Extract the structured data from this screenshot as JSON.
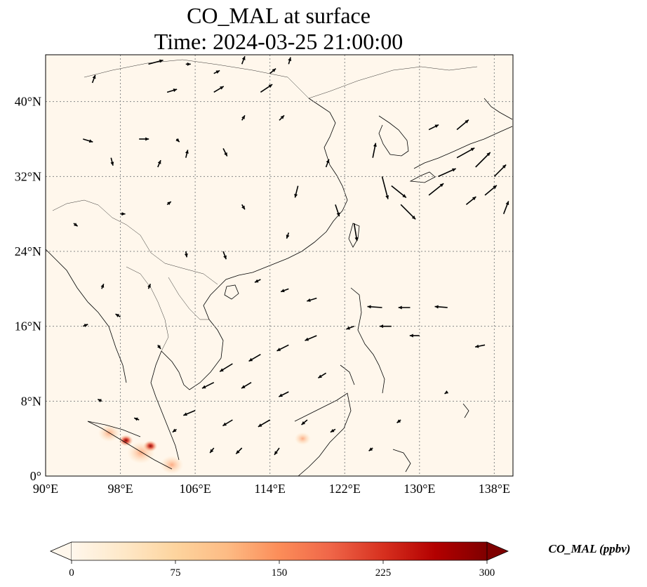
{
  "title": {
    "line1": "CO_MAL at surface",
    "line2": "Time: 2024-03-25 21:00:00"
  },
  "map": {
    "lon_range": [
      90,
      140
    ],
    "lat_range": [
      0,
      45
    ],
    "lon_ticks": [
      {
        "value": 90,
        "label": "90°E"
      },
      {
        "value": 98,
        "label": "98°E"
      },
      {
        "value": 106,
        "label": "106°E"
      },
      {
        "value": 114,
        "label": "114°E"
      },
      {
        "value": 122,
        "label": "122°E"
      },
      {
        "value": 130,
        "label": "130°E"
      },
      {
        "value": 138,
        "label": "138°E"
      }
    ],
    "lat_ticks": [
      {
        "value": 0,
        "label": "0°"
      },
      {
        "value": 8,
        "label": "8°N"
      },
      {
        "value": 16,
        "label": "16°N"
      },
      {
        "value": 24,
        "label": "24°N"
      },
      {
        "value": 32,
        "label": "32°N"
      },
      {
        "value": 40,
        "label": "40°N"
      }
    ],
    "gridlines": true,
    "background_color": "#fff7ec",
    "hotspots": [
      {
        "lon": 98.6,
        "lat": 3.8,
        "value": 290
      },
      {
        "lon": 101.2,
        "lat": 3.2,
        "value": 280
      },
      {
        "lon": 100.2,
        "lat": 2.5,
        "value": 140
      },
      {
        "lon": 96.8,
        "lat": 4.6,
        "value": 90
      },
      {
        "lon": 103.5,
        "lat": 1.2,
        "value": 100
      },
      {
        "lon": 117.5,
        "lat": 4.0,
        "value": 40
      }
    ]
  },
  "wind_vectors": [
    {
      "lon": 101,
      "lat": 44,
      "u": 1.5,
      "v": 0.4
    },
    {
      "lon": 105,
      "lat": 44,
      "u": 0.5,
      "v": 0
    },
    {
      "lon": 108,
      "lat": 43,
      "u": 0.6,
      "v": 0.3
    },
    {
      "lon": 111,
      "lat": 44,
      "u": 0.3,
      "v": 0.8
    },
    {
      "lon": 114,
      "lat": 43,
      "u": 0.6,
      "v": 0.5
    },
    {
      "lon": 116,
      "lat": 44,
      "u": 0.2,
      "v": 0.7
    },
    {
      "lon": 113,
      "lat": 41,
      "u": 1.2,
      "v": 0.8
    },
    {
      "lon": 108,
      "lat": 41,
      "u": 1.0,
      "v": 0.6
    },
    {
      "lon": 103,
      "lat": 41,
      "u": 1.0,
      "v": 0.3
    },
    {
      "lon": 95,
      "lat": 42,
      "u": 0.3,
      "v": 0.8
    },
    {
      "lon": 94,
      "lat": 36,
      "u": 1.0,
      "v": -0.3
    },
    {
      "lon": 97,
      "lat": 34,
      "u": 0.2,
      "v": -0.8
    },
    {
      "lon": 100,
      "lat": 36,
      "u": 1.0,
      "v": 0
    },
    {
      "lon": 102,
      "lat": 33,
      "u": 0.3,
      "v": 0.7
    },
    {
      "lon": 104,
      "lat": 36,
      "u": 0.3,
      "v": -0.3
    },
    {
      "lon": 105,
      "lat": 34,
      "u": 0.2,
      "v": 0.8
    },
    {
      "lon": 109,
      "lat": 35,
      "u": 0.4,
      "v": -0.8
    },
    {
      "lon": 111,
      "lat": 38,
      "u": 0.3,
      "v": 0.5
    },
    {
      "lon": 115,
      "lat": 38,
      "u": 0.5,
      "v": 0.5
    },
    {
      "lon": 117,
      "lat": 31,
      "u": -0.3,
      "v": -1.2
    },
    {
      "lon": 120,
      "lat": 33,
      "u": 0.3,
      "v": 0.8
    },
    {
      "lon": 121,
      "lat": 29,
      "u": 0.4,
      "v": -1.2
    },
    {
      "lon": 123,
      "lat": 27,
      "u": 0.3,
      "v": -1.8
    },
    {
      "lon": 126,
      "lat": 32,
      "u": 0.6,
      "v": -2.3
    },
    {
      "lon": 128,
      "lat": 29,
      "u": 1.5,
      "v": -1.5
    },
    {
      "lon": 127,
      "lat": 31,
      "u": 1.5,
      "v": -1.2
    },
    {
      "lon": 125,
      "lat": 34,
      "u": 0.3,
      "v": 1.5
    },
    {
      "lon": 131,
      "lat": 30,
      "u": 1.5,
      "v": 1.2
    },
    {
      "lon": 132,
      "lat": 32,
      "u": 1.8,
      "v": 0.8
    },
    {
      "lon": 134,
      "lat": 34,
      "u": 1.8,
      "v": 1.0
    },
    {
      "lon": 136,
      "lat": 33,
      "u": 1.5,
      "v": 1.5
    },
    {
      "lon": 138,
      "lat": 32,
      "u": 1.2,
      "v": 1.2
    },
    {
      "lon": 135,
      "lat": 29,
      "u": 1.0,
      "v": 0.8
    },
    {
      "lon": 137,
      "lat": 30,
      "u": 1.2,
      "v": 1.0
    },
    {
      "lon": 139,
      "lat": 28,
      "u": 0.5,
      "v": 1.3
    },
    {
      "lon": 131,
      "lat": 37,
      "u": 1.0,
      "v": 0.5
    },
    {
      "lon": 134,
      "lat": 37,
      "u": 1.2,
      "v": 1.0
    },
    {
      "lon": 105,
      "lat": 24,
      "u": 0.1,
      "v": -0.6
    },
    {
      "lon": 109,
      "lat": 24,
      "u": 0.3,
      "v": -0.8
    },
    {
      "lon": 113,
      "lat": 21,
      "u": -0.6,
      "v": -0.3
    },
    {
      "lon": 116,
      "lat": 20,
      "u": -0.8,
      "v": -0.3
    },
    {
      "lon": 119,
      "lat": 19,
      "u": -1.0,
      "v": -0.3
    },
    {
      "lon": 126,
      "lat": 18,
      "u": -1.5,
      "v": 0.1
    },
    {
      "lon": 129,
      "lat": 18,
      "u": -1.2,
      "v": 0
    },
    {
      "lon": 133,
      "lat": 18,
      "u": -1.3,
      "v": 0.1
    },
    {
      "lon": 127,
      "lat": 16,
      "u": -1.2,
      "v": 0
    },
    {
      "lon": 130,
      "lat": 15,
      "u": -1.0,
      "v": 0
    },
    {
      "lon": 137,
      "lat": 14,
      "u": -1.0,
      "v": -0.2
    },
    {
      "lon": 123,
      "lat": 16,
      "u": -0.8,
      "v": -0.3
    },
    {
      "lon": 119,
      "lat": 15,
      "u": -1.2,
      "v": -0.5
    },
    {
      "lon": 116,
      "lat": 14,
      "u": -1.2,
      "v": -0.6
    },
    {
      "lon": 113,
      "lat": 13,
      "u": -1.2,
      "v": -0.7
    },
    {
      "lon": 110,
      "lat": 12,
      "u": -1.3,
      "v": -0.8
    },
    {
      "lon": 108,
      "lat": 10,
      "u": -1.2,
      "v": -0.6
    },
    {
      "lon": 112,
      "lat": 10,
      "u": -1.0,
      "v": -0.6
    },
    {
      "lon": 116,
      "lat": 9,
      "u": -1.0,
      "v": -0.5
    },
    {
      "lon": 120,
      "lat": 11,
      "u": -0.8,
      "v": -0.5
    },
    {
      "lon": 106,
      "lat": 7,
      "u": -1.2,
      "v": -0.5
    },
    {
      "lon": 110,
      "lat": 6,
      "u": -1.0,
      "v": -0.6
    },
    {
      "lon": 114,
      "lat": 6,
      "u": -1.2,
      "v": -0.7
    },
    {
      "lon": 118,
      "lat": 6,
      "u": -0.6,
      "v": -0.5
    },
    {
      "lon": 111,
      "lat": 3,
      "u": -0.6,
      "v": -0.6
    },
    {
      "lon": 115,
      "lat": 3,
      "u": -0.5,
      "v": -0.7
    },
    {
      "lon": 108,
      "lat": 3,
      "u": -0.4,
      "v": -0.5
    },
    {
      "lon": 104,
      "lat": 5,
      "u": -0.4,
      "v": -0.3
    },
    {
      "lon": 100,
      "lat": 6,
      "u": -0.5,
      "v": 0.2
    },
    {
      "lon": 96,
      "lat": 8,
      "u": -0.4,
      "v": 0.2
    },
    {
      "lon": 121,
      "lat": 5,
      "u": -0.5,
      "v": -0.3
    },
    {
      "lon": 125,
      "lat": 3,
      "u": -0.4,
      "v": -0.3
    },
    {
      "lon": 128,
      "lat": 6,
      "u": -0.4,
      "v": -0.3
    },
    {
      "lon": 133,
      "lat": 9,
      "u": -0.3,
      "v": -0.2
    },
    {
      "lon": 96,
      "lat": 20,
      "u": 0.2,
      "v": 0.5
    },
    {
      "lon": 98,
      "lat": 17,
      "u": -0.5,
      "v": 0.3
    },
    {
      "lon": 101,
      "lat": 20,
      "u": 0.2,
      "v": 0.5
    },
    {
      "lon": 102,
      "lat": 14,
      "u": 0.3,
      "v": -0.4
    },
    {
      "lon": 94,
      "lat": 16,
      "u": 0.5,
      "v": 0.2
    },
    {
      "lon": 93,
      "lat": 27,
      "u": 0.4,
      "v": -0.3
    },
    {
      "lon": 98,
      "lat": 28,
      "u": 0.5,
      "v": 0
    },
    {
      "lon": 103,
      "lat": 29,
      "u": 0.4,
      "v": 0.3
    },
    {
      "lon": 111,
      "lat": 29,
      "u": 0.3,
      "v": -0.5
    },
    {
      "lon": 116,
      "lat": 26,
      "u": -0.2,
      "v": -0.6
    }
  ],
  "colorbar": {
    "label": "CO_MAL (ppbv)",
    "min": 0,
    "max": 300,
    "ticks": [
      {
        "value": 0,
        "label": "0"
      },
      {
        "value": 75,
        "label": "75"
      },
      {
        "value": 150,
        "label": "150"
      },
      {
        "value": 225,
        "label": "225"
      },
      {
        "value": 300,
        "label": "300"
      }
    ],
    "extend": "both",
    "colormap_stops": [
      "#fff7ec",
      "#fee8c8",
      "#fdd49e",
      "#fdbb84",
      "#fc8d59",
      "#ef6548",
      "#d7301f",
      "#b30000",
      "#7f0000"
    ]
  }
}
